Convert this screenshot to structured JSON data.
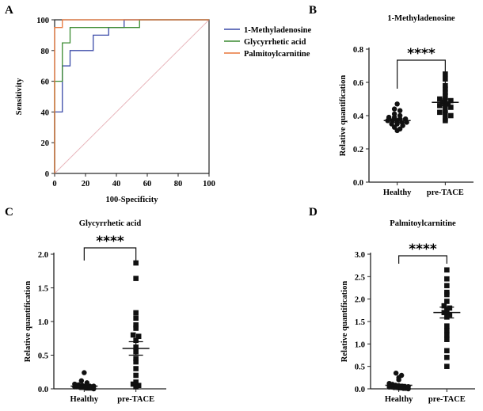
{
  "chart_data": [
    {
      "panel": "A",
      "type": "line",
      "title": "",
      "xlabel": "100-Specificity",
      "ylabel": "Sensitivity",
      "xlim": [
        0,
        100
      ],
      "ylim": [
        0,
        100
      ],
      "xticks": [
        "0",
        "20",
        "40",
        "60",
        "80",
        "100"
      ],
      "yticks": [
        "0",
        "20",
        "40",
        "60",
        "80",
        "100"
      ],
      "legend": "top-right",
      "reference_line": {
        "x": [
          0,
          100
        ],
        "y": [
          0,
          100
        ],
        "color": "#e8b6bc"
      },
      "series": [
        {
          "name": "1-Methyladenosine",
          "color": "#3a4aa8",
          "x": [
            0,
            0,
            5,
            5,
            10,
            10,
            15,
            15,
            20,
            20,
            25,
            25,
            30,
            30,
            35,
            35,
            45,
            45,
            50,
            50,
            100
          ],
          "y": [
            0,
            40,
            40,
            70,
            70,
            80,
            80,
            80,
            80,
            80,
            80,
            90,
            90,
            90,
            90,
            95,
            95,
            100,
            100,
            100,
            100
          ]
        },
        {
          "name": "Glycyrrhetic acid",
          "color": "#3a8a30",
          "x": [
            0,
            0,
            5,
            5,
            10,
            10,
            55,
            55,
            100
          ],
          "y": [
            0,
            60,
            60,
            85,
            85,
            95,
            95,
            100,
            100
          ]
        },
        {
          "name": "Palmitoylcarnitine",
          "color": "#e8763a",
          "x": [
            0,
            0,
            5,
            5,
            100
          ],
          "y": [
            0,
            95,
            95,
            100,
            100
          ]
        }
      ]
    },
    {
      "panel": "B",
      "type": "scatter",
      "title": "1-Methyladenosine",
      "ylabel": "Relative quantification",
      "categories": [
        "Healthy",
        "pre-TACE"
      ],
      "ylim": [
        0,
        0.8
      ],
      "yticks": [
        "0.0",
        "0.2",
        "0.4",
        "0.6",
        "0.8"
      ],
      "significance": "****",
      "groups": [
        {
          "name": "Healthy",
          "marker": "circle",
          "mean": 0.37,
          "sem": 0.01,
          "values": [
            0.47,
            0.44,
            0.43,
            0.41,
            0.4,
            0.39,
            0.39,
            0.38,
            0.38,
            0.37,
            0.37,
            0.37,
            0.36,
            0.36,
            0.35,
            0.35,
            0.34,
            0.33,
            0.32,
            0.31
          ]
        },
        {
          "name": "pre-TACE",
          "marker": "square",
          "mean": 0.48,
          "sem": 0.02,
          "values": [
            0.65,
            0.62,
            0.58,
            0.56,
            0.54,
            0.52,
            0.5,
            0.49,
            0.49,
            0.48,
            0.47,
            0.46,
            0.46,
            0.45,
            0.43,
            0.42,
            0.41,
            0.4,
            0.38,
            0.37
          ]
        }
      ]
    },
    {
      "panel": "C",
      "type": "scatter",
      "title": "Glycyrrhetic acid",
      "ylabel": "Relative quantification",
      "categories": [
        "Healthy",
        "pre-TACE"
      ],
      "ylim": [
        0,
        2.0
      ],
      "yticks": [
        "0.0",
        "0.5",
        "1.0",
        "1.5",
        "2.0"
      ],
      "significance": "****",
      "groups": [
        {
          "name": "Healthy",
          "marker": "circle",
          "mean": 0.04,
          "sem": 0.01,
          "values": [
            0.24,
            0.12,
            0.09,
            0.07,
            0.06,
            0.05,
            0.05,
            0.04,
            0.04,
            0.03,
            0.03,
            0.03,
            0.02,
            0.02,
            0.02,
            0.01,
            0.01,
            0.01,
            0.01,
            0.0
          ]
        },
        {
          "name": "pre-TACE",
          "marker": "square",
          "mean": 0.6,
          "sem": 0.1,
          "values": [
            1.87,
            1.64,
            1.13,
            1.05,
            0.95,
            0.9,
            0.8,
            0.78,
            0.72,
            0.62,
            0.55,
            0.45,
            0.4,
            0.3,
            0.2,
            0.1,
            0.07,
            0.05,
            0.03
          ]
        }
      ]
    },
    {
      "panel": "D",
      "type": "scatter",
      "title": "Palmitoylcarnitine",
      "ylabel": "Relative quantification",
      "categories": [
        "Healthy",
        "pre-TACE"
      ],
      "ylim": [
        0,
        3.0
      ],
      "yticks": [
        "0.0",
        "0.5",
        "1.0",
        "1.5",
        "2.0",
        "2.5",
        "3.0"
      ],
      "significance": "****",
      "groups": [
        {
          "name": "Healthy",
          "marker": "circle",
          "mean": 0.08,
          "sem": 0.02,
          "values": [
            0.35,
            0.3,
            0.25,
            0.2,
            0.12,
            0.1,
            0.08,
            0.07,
            0.06,
            0.05,
            0.05,
            0.04,
            0.04,
            0.03,
            0.03,
            0.02,
            0.02,
            0.01,
            0.01,
            0.0
          ]
        },
        {
          "name": "pre-TACE",
          "marker": "square",
          "mean": 1.7,
          "sem": 0.12,
          "values": [
            2.65,
            2.45,
            2.3,
            2.15,
            2.1,
            1.95,
            1.85,
            1.8,
            1.75,
            1.7,
            1.65,
            1.6,
            1.4,
            1.3,
            1.2,
            1.1,
            0.85,
            0.7,
            0.5
          ]
        }
      ]
    }
  ],
  "panel_labels": [
    "A",
    "B",
    "C",
    "D"
  ]
}
